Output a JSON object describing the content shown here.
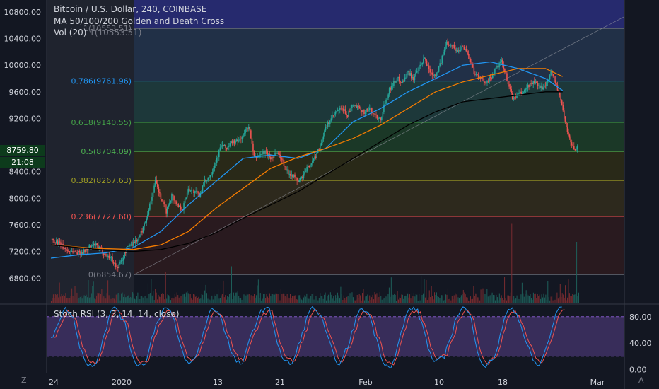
{
  "header": {
    "symbol_line": "Bitcoin / U.S. Dollar, 240, COINBASE",
    "ma_line": "MA 50/100/200 Golden and Death Cross",
    "vol_label": "Vol (20)",
    "vol_extra": "1(10553.51)"
  },
  "last_price": {
    "value": "8759.80",
    "countdown": "21:08",
    "color": "#26a69a"
  },
  "bottom_corners": {
    "left": "Z",
    "right": "A"
  },
  "stoch_title": "Stoch RSI (3, 3, 14, 14, close)",
  "colors": {
    "up": "#26a69a",
    "down": "#ef5350",
    "ma50": "#2196f3",
    "ma100": "#f57c00",
    "ma200": "#000000",
    "stoch_k": "#2196f3",
    "stoch_d": "#ef5350",
    "stoch_band": "#7e57c2"
  },
  "chart_data": [
    {
      "type": "candlestick",
      "name": "price",
      "x_ticks": [
        "24",
        "2020",
        "13",
        "21",
        "Feb",
        "10",
        "18",
        "Mar"
      ],
      "y_ticks": [
        6800,
        7200,
        7600,
        8000,
        8400,
        8760,
        9200,
        9600,
        10000,
        10400,
        10800
      ],
      "ylim": [
        6420,
        10980
      ],
      "fib_levels": [
        {
          "ratio": "0",
          "price": 6854.67,
          "label": "0(6854.67)",
          "color": "#787b86"
        },
        {
          "ratio": "0.236",
          "price": 7727.6,
          "label": "0.236(7727.60)",
          "color": "#ef5350"
        },
        {
          "ratio": "0.382",
          "price": 8267.63,
          "label": "0.382(8267.63)",
          "color": "#9e9d24"
        },
        {
          "ratio": "0.5",
          "price": 8704.09,
          "label": "0.5(8704.09)",
          "color": "#4caf50"
        },
        {
          "ratio": "0.618",
          "price": 9140.55,
          "label": "0.618(9140.55)",
          "color": "#43a047"
        },
        {
          "ratio": "0.786",
          "price": 9761.96,
          "label": "0.786(9761.96)",
          "color": "#2196f3"
        },
        {
          "ratio": "1",
          "price": 10553.51,
          "label": "1(10553.51)",
          "color": "#787b86"
        }
      ],
      "close_path": [
        [
          0,
          7380
        ],
        [
          8,
          7350
        ],
        [
          16,
          7280
        ],
        [
          24,
          7210
        ],
        [
          32,
          7200
        ],
        [
          40,
          7180
        ],
        [
          48,
          7200
        ],
        [
          56,
          7260
        ],
        [
          64,
          7300
        ],
        [
          72,
          7230
        ],
        [
          80,
          7150
        ],
        [
          88,
          7100
        ],
        [
          96,
          6950
        ],
        [
          104,
          7080
        ],
        [
          112,
          7280
        ],
        [
          120,
          7330
        ],
        [
          128,
          7400
        ],
        [
          136,
          7600
        ],
        [
          144,
          7900
        ],
        [
          152,
          8250
        ],
        [
          160,
          8000
        ],
        [
          168,
          7800
        ],
        [
          176,
          8050
        ],
        [
          184,
          7900
        ],
        [
          192,
          7850
        ],
        [
          200,
          8150
        ],
        [
          208,
          8100
        ],
        [
          216,
          8050
        ],
        [
          224,
          8250
        ],
        [
          232,
          8350
        ],
        [
          240,
          8550
        ],
        [
          248,
          8800
        ],
        [
          256,
          8750
        ],
        [
          264,
          8850
        ],
        [
          272,
          8850
        ],
        [
          280,
          8950
        ],
        [
          288,
          9100
        ],
        [
          296,
          8600
        ],
        [
          304,
          8650
        ],
        [
          312,
          8700
        ],
        [
          320,
          8600
        ],
        [
          328,
          8700
        ],
        [
          336,
          8600
        ],
        [
          344,
          8400
        ],
        [
          352,
          8350
        ],
        [
          360,
          8250
        ],
        [
          368,
          8350
        ],
        [
          376,
          8500
        ],
        [
          384,
          8600
        ],
        [
          392,
          8800
        ],
        [
          400,
          9050
        ],
        [
          408,
          9200
        ],
        [
          416,
          9300
        ],
        [
          424,
          9350
        ],
        [
          432,
          9250
        ],
        [
          440,
          9400
        ],
        [
          448,
          9350
        ],
        [
          456,
          9300
        ],
        [
          464,
          9350
        ],
        [
          472,
          9250
        ],
        [
          480,
          9200
        ],
        [
          488,
          9500
        ],
        [
          496,
          9700
        ],
        [
          504,
          9800
        ],
        [
          512,
          9750
        ],
        [
          520,
          9900
        ],
        [
          528,
          9800
        ],
        [
          536,
          9950
        ],
        [
          544,
          10100
        ],
        [
          552,
          9900
        ],
        [
          560,
          9850
        ],
        [
          568,
          10050
        ],
        [
          576,
          10350
        ],
        [
          584,
          10300
        ],
        [
          592,
          10200
        ],
        [
          600,
          10300
        ],
        [
          608,
          10150
        ],
        [
          616,
          9900
        ],
        [
          624,
          9800
        ],
        [
          632,
          9750
        ],
        [
          640,
          9800
        ],
        [
          648,
          9950
        ],
        [
          656,
          10050
        ],
        [
          664,
          9800
        ],
        [
          672,
          9500
        ],
        [
          680,
          9550
        ],
        [
          688,
          9600
        ],
        [
          696,
          9700
        ],
        [
          704,
          9750
        ],
        [
          712,
          9650
        ],
        [
          720,
          9700
        ],
        [
          728,
          9900
        ],
        [
          736,
          9700
        ],
        [
          744,
          9400
        ],
        [
          752,
          9000
        ],
        [
          760,
          8750
        ],
        [
          768,
          8759.8
        ]
      ],
      "volume_spikes": [
        [
          54,
          22
        ],
        [
          167,
          30
        ],
        [
          263,
          35
        ],
        [
          355,
          20
        ],
        [
          489,
          20
        ],
        [
          546,
          22
        ],
        [
          556,
          28
        ],
        [
          671,
          75
        ],
        [
          765,
          58
        ]
      ]
    },
    {
      "type": "line",
      "name": "moving-averages",
      "series": [
        {
          "name": "MA 50",
          "color": "#2196f3",
          "points": [
            [
              0,
              7100
            ],
            [
              40,
              7150
            ],
            [
              80,
              7180
            ],
            [
              120,
              7260
            ],
            [
              160,
              7500
            ],
            [
              200,
              7900
            ],
            [
              240,
              8250
            ],
            [
              280,
              8600
            ],
            [
              320,
              8650
            ],
            [
              360,
              8600
            ],
            [
              400,
              8750
            ],
            [
              440,
              9150
            ],
            [
              480,
              9350
            ],
            [
              520,
              9600
            ],
            [
              560,
              9800
            ],
            [
              600,
              10000
            ],
            [
              640,
              10050
            ],
            [
              680,
              9950
            ],
            [
              720,
              9800
            ],
            [
              745,
              9620
            ]
          ]
        },
        {
          "name": "MA 100",
          "color": "#f57c00",
          "points": [
            [
              0,
              7300
            ],
            [
              60,
              7250
            ],
            [
              120,
              7230
            ],
            [
              160,
              7300
            ],
            [
              200,
              7500
            ],
            [
              240,
              7850
            ],
            [
              280,
              8150
            ],
            [
              320,
              8450
            ],
            [
              360,
              8620
            ],
            [
              400,
              8750
            ],
            [
              440,
              8900
            ],
            [
              480,
              9100
            ],
            [
              520,
              9350
            ],
            [
              560,
              9600
            ],
            [
              600,
              9750
            ],
            [
              640,
              9850
            ],
            [
              680,
              9950
            ],
            [
              720,
              9950
            ],
            [
              745,
              9830
            ]
          ]
        },
        {
          "name": "MA 200",
          "color": "#000000",
          "points": [
            [
              0,
              7300
            ],
            [
              80,
              7220
            ],
            [
              120,
              7200
            ],
            [
              160,
              7230
            ],
            [
              200,
              7320
            ],
            [
              240,
              7480
            ],
            [
              280,
              7700
            ],
            [
              320,
              7900
            ],
            [
              360,
              8100
            ],
            [
              400,
              8350
            ],
            [
              440,
              8600
            ],
            [
              480,
              8850
            ],
            [
              520,
              9100
            ],
            [
              560,
              9300
            ],
            [
              600,
              9450
            ],
            [
              640,
              9500
            ],
            [
              680,
              9550
            ],
            [
              720,
              9600
            ],
            [
              745,
              9600
            ]
          ]
        }
      ]
    },
    {
      "type": "line",
      "name": "stoch-rsi",
      "title": "Stoch RSI (3, 3, 14, 14, close)",
      "y_ticks": [
        0.0,
        40.0,
        80.0
      ],
      "ylim": [
        -5,
        98
      ],
      "band": [
        20,
        80
      ],
      "series": [
        {
          "name": "K",
          "color": "#2196f3"
        },
        {
          "name": "D",
          "color": "#ef5350"
        }
      ]
    }
  ]
}
